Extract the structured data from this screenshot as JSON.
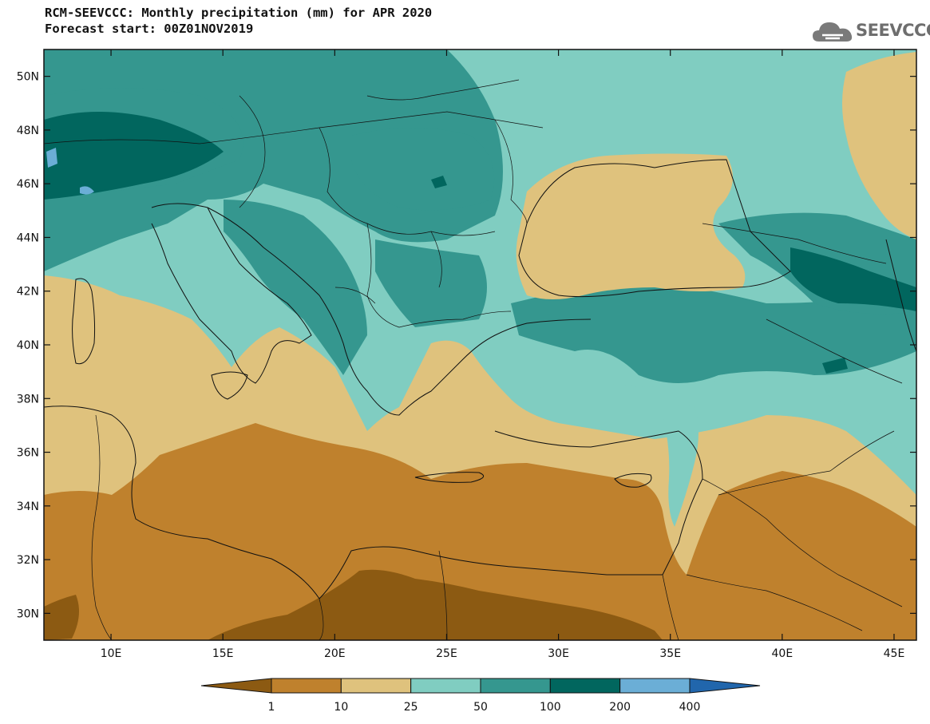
{
  "header": {
    "title": "RCM-SEEVCCC: Monthly precipitation (mm) for APR 2020",
    "subtitle": "Forecast start: 00Z01NOV2019"
  },
  "logo": {
    "text": "SEEVCCC",
    "icon": "cloud-icon"
  },
  "map": {
    "lon_range": [
      7,
      46
    ],
    "lat_range": [
      29,
      51
    ],
    "lat_ticks": [
      "50N",
      "48N",
      "46N",
      "44N",
      "42N",
      "40N",
      "38N",
      "36N",
      "34N",
      "32N",
      "30N"
    ],
    "lon_ticks": [
      "10E",
      "15E",
      "20E",
      "25E",
      "30E",
      "35E",
      "40E",
      "45E"
    ]
  },
  "colorbar": {
    "levels": [
      "1",
      "10",
      "25",
      "50",
      "100",
      "200",
      "400"
    ],
    "colors": [
      "#8c5a12",
      "#bf812d",
      "#dfc27d",
      "#80cdc1",
      "#35978f",
      "#01665e",
      "#6baed6",
      "#2166ac"
    ]
  }
}
